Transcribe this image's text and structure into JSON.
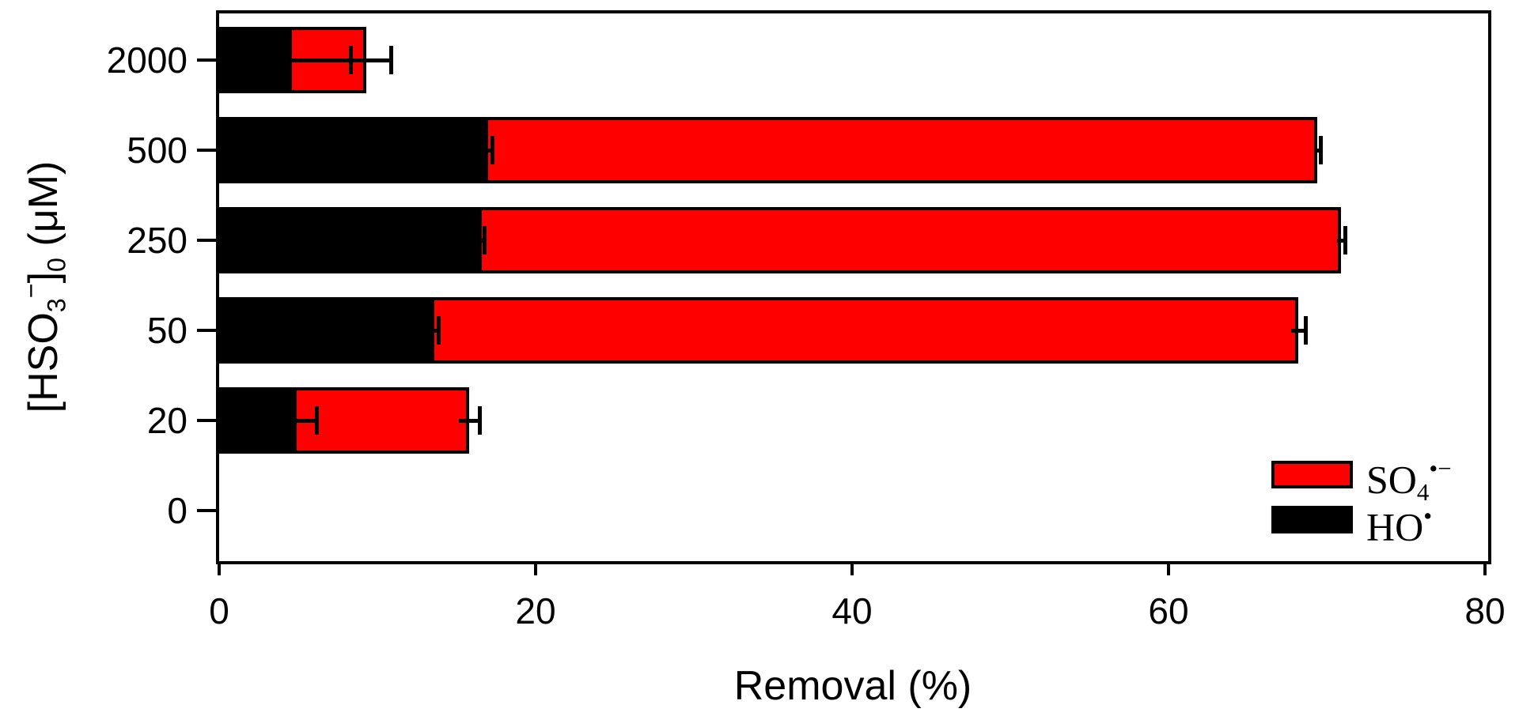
{
  "chart_data": {
    "type": "bar",
    "orientation": "horizontal",
    "stacked": true,
    "title": "",
    "xlabel": "Removal (%)",
    "ylabel": "[HSO3-]0 (uM)",
    "ylabel_segments": [
      {
        "t": "[HSO"
      },
      {
        "t": "3",
        "s": "sub"
      },
      {
        "t": "−",
        "s": "sup"
      },
      {
        "t": "]"
      },
      {
        "t": "0",
        "s": "sub"
      },
      {
        "t": " (μM)"
      }
    ],
    "categories": [
      "2000",
      "500",
      "250",
      "50",
      "20",
      "0"
    ],
    "x_ticks": [
      "0",
      "20",
      "40",
      "60",
      "80"
    ],
    "xlim": [
      0,
      80
    ],
    "grid": false,
    "legend_position": "lower right",
    "axis_color": "#000000",
    "background_color": "#ffffff",
    "series": [
      {
        "name": "SO4•−",
        "name_segments": [
          {
            "t": "SO"
          },
          {
            "t": "4",
            "s": "sub"
          },
          {
            "t": "•−",
            "s": "sup"
          }
        ],
        "color": "#ff0000",
        "role": "top-stack",
        "values": [
          4.7,
          52.4,
          54.3,
          54.6,
          10.9,
          0
        ]
      },
      {
        "name": "HO•",
        "name_segments": [
          {
            "t": "HO"
          },
          {
            "t": "•",
            "s": "sup"
          }
        ],
        "color": "#000000",
        "role": "base-stack",
        "values": [
          4.6,
          17.0,
          16.6,
          13.6,
          4.9,
          0
        ]
      }
    ],
    "totals": [
      9.3,
      69.4,
      70.9,
      68.2,
      15.8,
      0
    ],
    "base_segment_errors": [
      3.7,
      0.25,
      0.15,
      0.25,
      1.25,
      0
    ],
    "total_errors": [
      1.55,
      0.2,
      0.25,
      0.45,
      0.65,
      0
    ]
  }
}
